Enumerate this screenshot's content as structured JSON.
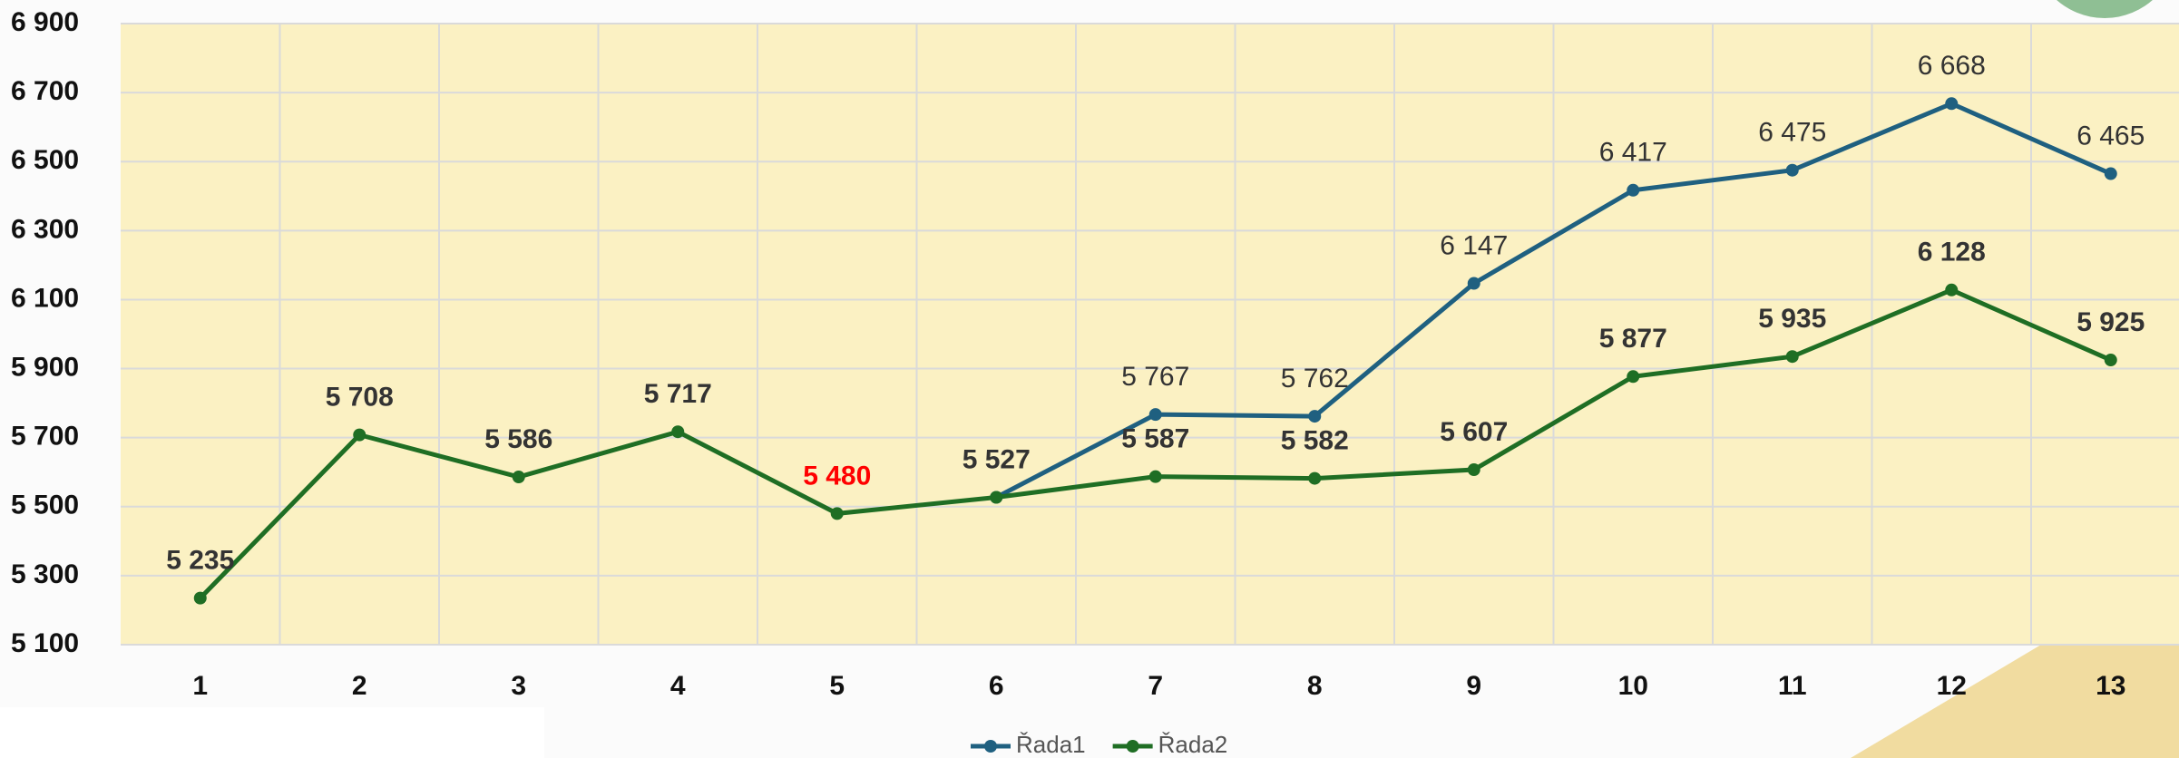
{
  "chart_data": {
    "type": "line",
    "categories": [
      "1",
      "2",
      "3",
      "4",
      "5",
      "6",
      "7",
      "8",
      "9",
      "10",
      "11",
      "12",
      "13"
    ],
    "series": [
      {
        "name": "Řada1",
        "color": "#1f6080",
        "values": [
          null,
          null,
          null,
          null,
          null,
          5527,
          5767,
          5762,
          6147,
          6417,
          6475,
          6668,
          6465
        ],
        "value_labels": [
          null,
          null,
          null,
          null,
          null,
          null,
          "5 767",
          "5 762",
          "6 147",
          "6 417",
          "6 475",
          "6 668",
          "6 465"
        ]
      },
      {
        "name": "Řada2",
        "color": "#1f6e24",
        "values": [
          5235,
          5708,
          5586,
          5717,
          5480,
          5527,
          5587,
          5582,
          5607,
          5877,
          5935,
          6128,
          5925
        ],
        "value_labels": [
          "5 235",
          "5 708",
          "5 586",
          "5 717",
          "5 480",
          "5 527",
          "5 587",
          "5 582",
          "5 607",
          "5 877",
          "5 935",
          "6 128",
          "5 925"
        ],
        "value_label_colors": [
          null,
          null,
          null,
          null,
          "#ff0000",
          null,
          null,
          null,
          null,
          null,
          null,
          null,
          null
        ]
      }
    ],
    "ylim": [
      5100,
      6900
    ],
    "yticks": [
      {
        "value": 5100,
        "label": "5 100"
      },
      {
        "value": 5300,
        "label": "5 300"
      },
      {
        "value": 5500,
        "label": "5 500"
      },
      {
        "value": 5700,
        "label": "5 700"
      },
      {
        "value": 5900,
        "label": "5 900"
      },
      {
        "value": 6100,
        "label": "6 100"
      },
      {
        "value": 6300,
        "label": "6 300"
      },
      {
        "value": 6500,
        "label": "6 500"
      },
      {
        "value": 6700,
        "label": "6 700"
      },
      {
        "value": 6900,
        "label": "6 900"
      }
    ],
    "grid": true,
    "legend": "bottom"
  }
}
